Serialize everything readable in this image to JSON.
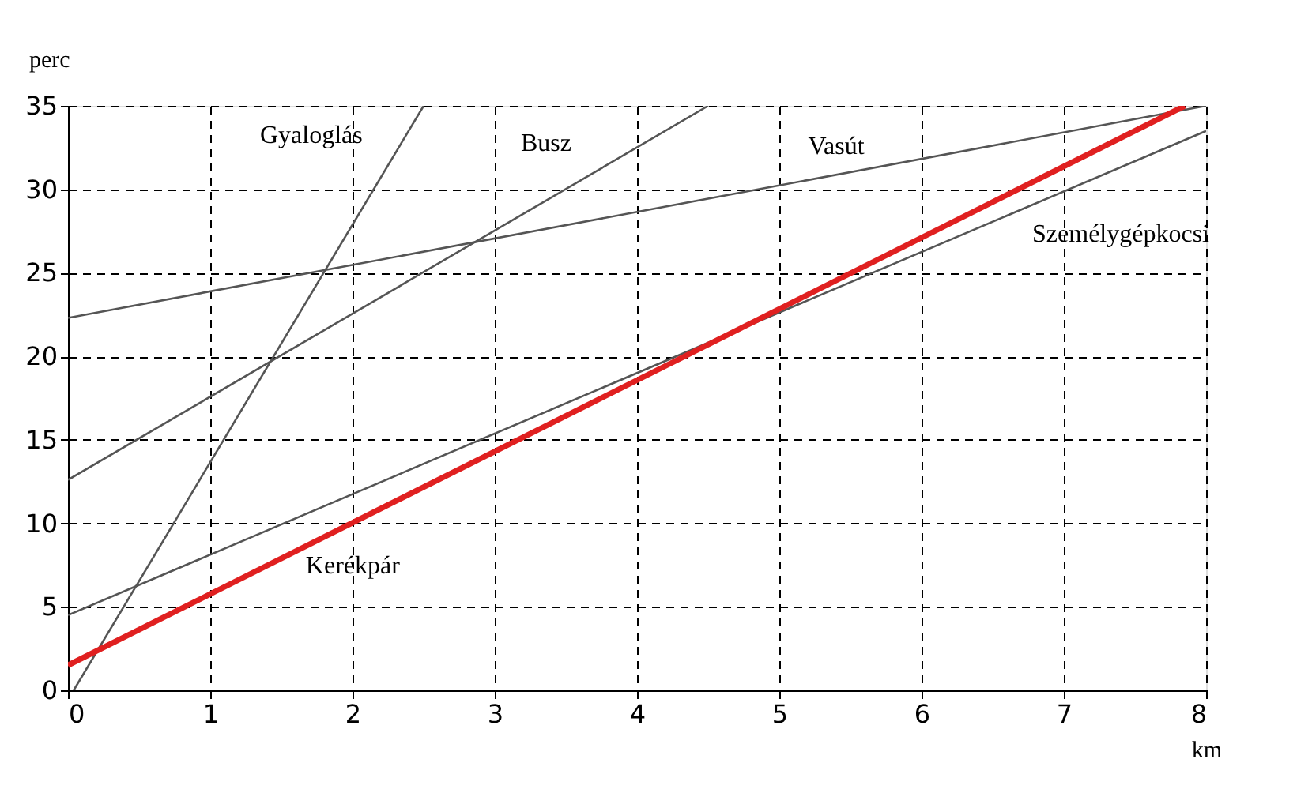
{
  "chart_data": {
    "type": "line",
    "xlabel": "km",
    "ylabel": "perc",
    "xlim": [
      0,
      8
    ],
    "ylim": [
      0,
      35
    ],
    "xticks": [
      0,
      1,
      2,
      3,
      4,
      5,
      6,
      7,
      8
    ],
    "yticks": [
      0,
      5,
      10,
      15,
      20,
      25,
      30,
      35
    ],
    "grid": true,
    "line_style": "solid",
    "marker": "none",
    "series": [
      {
        "name": "Gyaloglás",
        "color": "#555555",
        "x": [
          0.04,
          2.5
        ],
        "values": [
          0,
          35
        ]
      },
      {
        "name": "Busz",
        "color": "#555555",
        "x": [
          0,
          4.5
        ],
        "values": [
          12.6,
          35
        ]
      },
      {
        "name": "Vasút",
        "color": "#555555",
        "x": [
          0,
          8
        ],
        "values": [
          22.3,
          35
        ]
      },
      {
        "name": "Személygépkocsi",
        "color": "#555555",
        "x": [
          0,
          8
        ],
        "values": [
          4.5,
          33.5
        ]
      },
      {
        "name": "Kerékpár",
        "color": "#e02020",
        "x": [
          0,
          7.85
        ],
        "values": [
          1.5,
          35
        ]
      }
    ]
  }
}
